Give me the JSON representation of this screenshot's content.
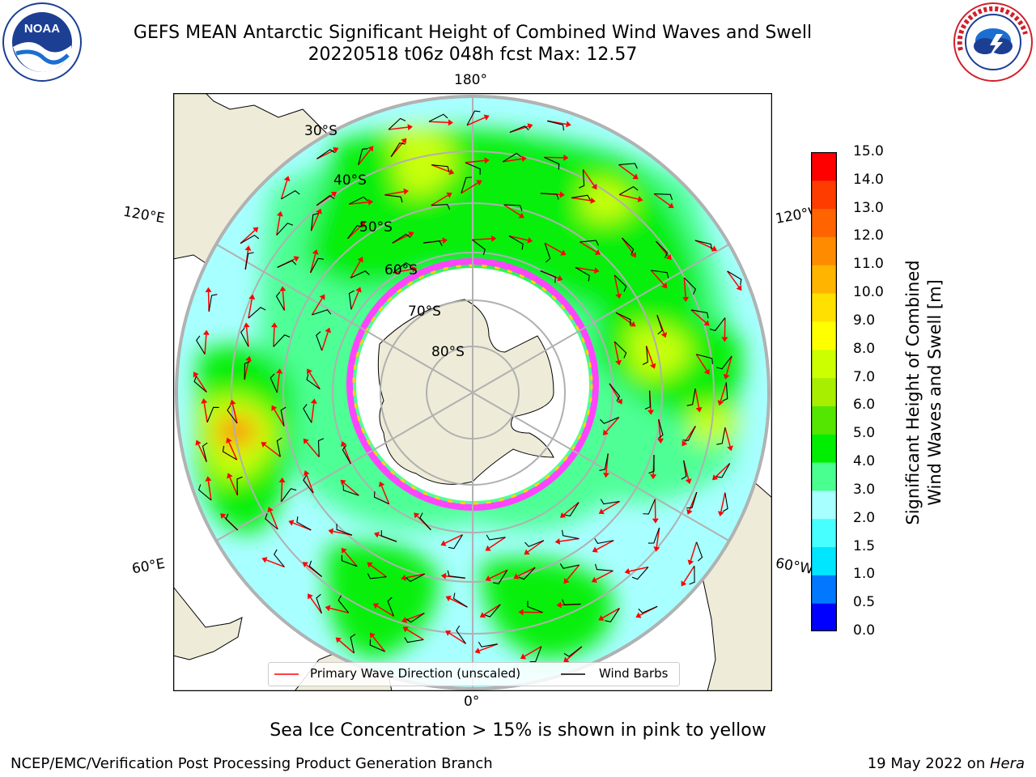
{
  "title": {
    "line1": "GEFS MEAN Antarctic Significant Height of Combined Wind Waves and Swell",
    "line2": "20220518 t06z 048h fcst   Max: 12.57"
  },
  "logos": {
    "left": {
      "name": "NOAA",
      "text": "NOAA",
      "ring_text": "NATIONAL OCEANIC AND ATMOSPHERIC ADMINISTRATION · U.S. DEPARTMENT OF COMMERCE"
    },
    "right": {
      "name": "National Weather Service",
      "ring_text": "NATIONAL WEATHER SERVICE"
    }
  },
  "map": {
    "projection": "south-polar-stereographic",
    "longitude_labels": {
      "top": "180°",
      "upper_left": "120°E",
      "upper_right": "120°W",
      "lower_left": "60°E",
      "lower_right": "60°W",
      "bottom": "0°"
    },
    "latitude_labels": [
      "30°S",
      "40°S",
      "50°S",
      "60°S",
      "70°S",
      "80°S"
    ],
    "colors": {
      "land": "#eeecd8",
      "ice_cap": "#ffffff",
      "sea_ice_edge": [
        "#ff44ff",
        "#ffa000",
        "#ffd700"
      ],
      "wave_arrow": "#ff0000",
      "wind_barb": "#000000",
      "grid": "#b0b0b0"
    }
  },
  "legend": {
    "items": [
      {
        "label": "Primary Wave Direction (unscaled)",
        "color": "#ff0000"
      },
      {
        "label": "Wind Barbs",
        "color": "#000000"
      }
    ]
  },
  "colorbar": {
    "label_line1": "Significant Height of Combined",
    "label_line2": "Wind Waves and Swell [m]",
    "ticks": [
      "0.0",
      "0.5",
      "1.0",
      "1.5",
      "2.0",
      "3.0",
      "4.0",
      "5.0",
      "6.0",
      "7.0",
      "8.0",
      "9.0",
      "10.0",
      "11.0",
      "12.0",
      "13.0",
      "14.0",
      "15.0"
    ],
    "colors": [
      "#0000ff",
      "#0078ff",
      "#00e6ff",
      "#48ffff",
      "#a8ffff",
      "#48ff90",
      "#00ef00",
      "#54e600",
      "#a8ee00",
      "#ccff00",
      "#ffff00",
      "#ffe000",
      "#ffb400",
      "#ff8c00",
      "#ff6400",
      "#ff3c00",
      "#ff0000"
    ]
  },
  "note": "Sea Ice Concentration > 15% is shown in pink to yellow",
  "footer": {
    "left": "NCEP/EMC/Verification Post Processing Product Generation Branch",
    "right_prefix": "19 May 2022 on ",
    "right_host": "Hera"
  }
}
